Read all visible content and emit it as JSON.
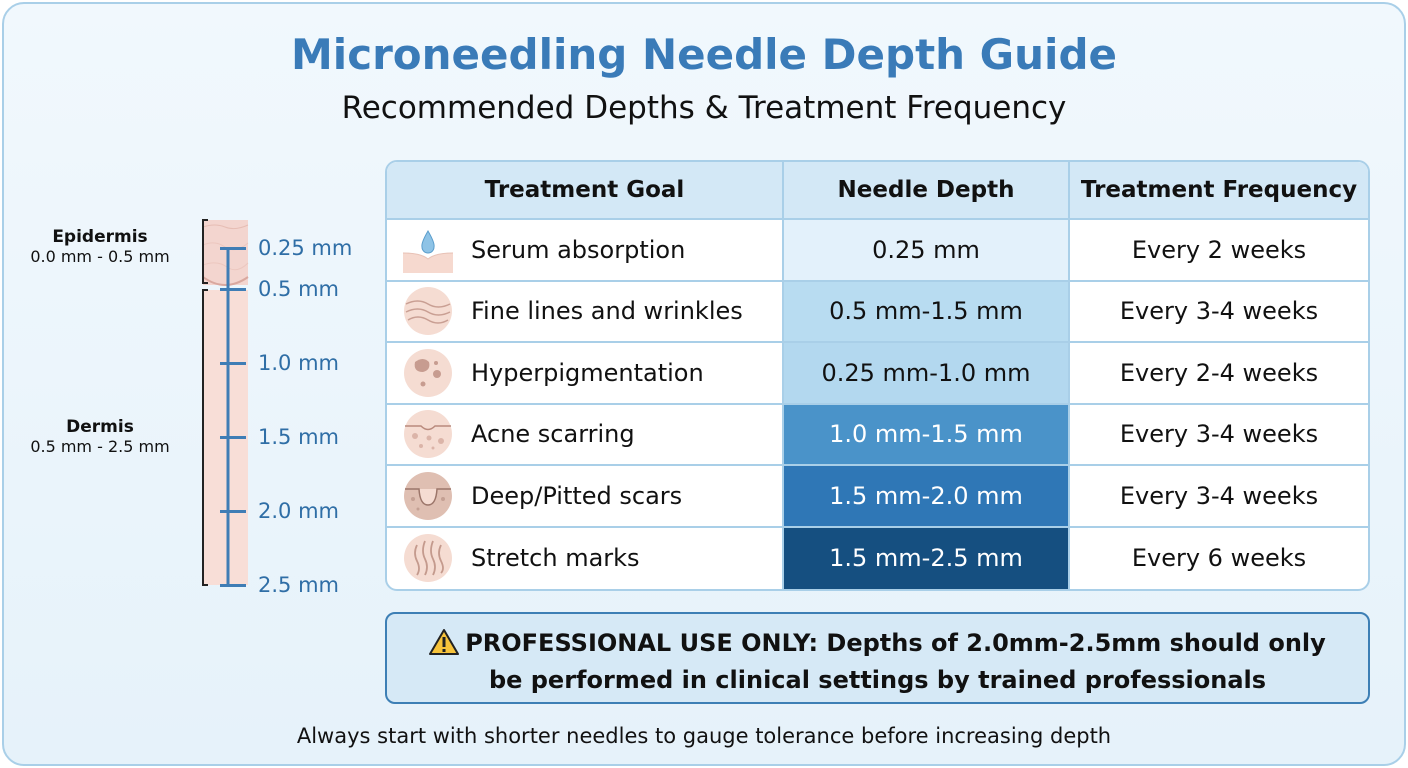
{
  "title": "Microneedling Needle Depth Guide",
  "subtitle": "Recommended Depths & Treatment Frequency",
  "skin": {
    "epidermis": {
      "name": "Epidermis",
      "range": "0.0 mm - 0.5 mm"
    },
    "dermis": {
      "name": "Dermis",
      "range": "0.5 mm - 2.5 mm"
    },
    "ticks": [
      {
        "value": 0.25,
        "label": "0.25 mm"
      },
      {
        "value": 0.5,
        "label": "0.5 mm"
      },
      {
        "value": 1.0,
        "label": "1.0 mm"
      },
      {
        "value": 1.5,
        "label": "1.5 mm"
      },
      {
        "value": 2.0,
        "label": "2.0 mm"
      },
      {
        "value": 2.5,
        "label": "2.5 mm"
      }
    ]
  },
  "table": {
    "headers": [
      "Treatment Goal",
      "Needle Depth",
      "Treatment Frequency"
    ],
    "rows": [
      {
        "icon": "serum-drop-icon",
        "goal": "Serum absorption",
        "depth": "0.25 mm",
        "frequency": "Every 2 weeks",
        "depth_color": "#e3f1fb",
        "text_color": "#111111"
      },
      {
        "icon": "fine-lines-icon",
        "goal": "Fine lines and wrinkles",
        "depth": "0.5 mm-1.5 mm",
        "frequency": "Every 3-4 weeks",
        "depth_color": "#b8dcf1",
        "text_color": "#111111"
      },
      {
        "icon": "pigment-spots-icon",
        "goal": "Hyperpigmentation",
        "depth": "0.25 mm-1.0 mm",
        "frequency": "Every 2-4 weeks",
        "depth_color": "#b3d8ef",
        "text_color": "#111111"
      },
      {
        "icon": "acne-scar-icon",
        "goal": "Acne scarring",
        "depth": "1.0 mm-1.5 mm",
        "frequency": "Every 3-4 weeks",
        "depth_color": "#4a93c9",
        "text_color": "#ffffff"
      },
      {
        "icon": "pitted-scar-icon",
        "goal": "Deep/Pitted scars",
        "depth": "1.5 mm-2.0 mm",
        "frequency": "Every 3-4 weeks",
        "depth_color": "#2f77b6",
        "text_color": "#ffffff"
      },
      {
        "icon": "stretch-marks-icon",
        "goal": "Stretch marks",
        "depth": "1.5 mm-2.5 mm",
        "frequency": "Every 6 weeks",
        "depth_color": "#154f80",
        "text_color": "#ffffff"
      }
    ]
  },
  "warning": {
    "icon": "warning-icon",
    "line1": "PROFESSIONAL USE ONLY: Depths of 2.0mm-2.5mm should only",
    "line2": "be performed in clinical settings by trained professionals"
  },
  "footer": "Always start with shorter needles to gauge tolerance before increasing depth"
}
